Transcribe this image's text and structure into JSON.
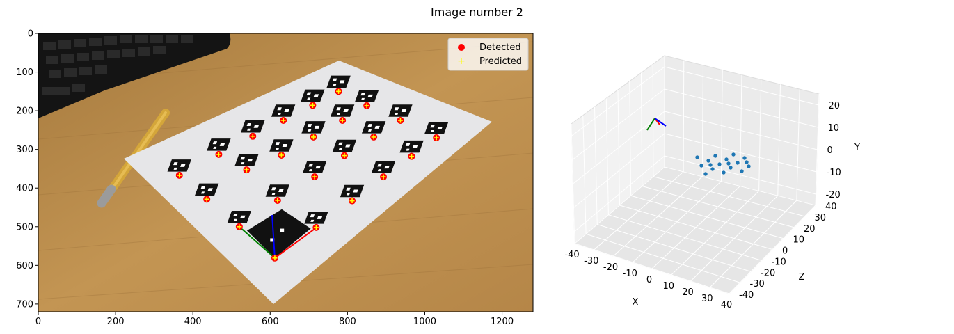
{
  "figure": {
    "suptitle": "Image number 2"
  },
  "chart_data": [
    {
      "type": "scatter",
      "panel": "image-with-detections",
      "xlim": [
        0,
        1280
      ],
      "ylim": [
        720,
        0
      ],
      "xticks": [
        0,
        200,
        400,
        600,
        800,
        1000,
        1200
      ],
      "yticks": [
        0,
        100,
        200,
        300,
        400,
        500,
        600,
        700
      ],
      "legend": {
        "placement": "top-right",
        "entries": [
          "Detected",
          "Predicted"
        ]
      },
      "colors": {
        "detected": "#ff0000",
        "predicted": "#ffff00"
      },
      "points": [
        [
          777,
          150
        ],
        [
          710,
          186
        ],
        [
          850,
          187
        ],
        [
          937,
          225
        ],
        [
          634,
          225
        ],
        [
          787,
          225
        ],
        [
          555,
          266
        ],
        [
          712,
          268
        ],
        [
          868,
          268
        ],
        [
          1030,
          270
        ],
        [
          467,
          313
        ],
        [
          629,
          315
        ],
        [
          792,
          316
        ],
        [
          966,
          318
        ],
        [
          539,
          353
        ],
        [
          715,
          371
        ],
        [
          893,
          371
        ],
        [
          365,
          367
        ],
        [
          436,
          429
        ],
        [
          619,
          432
        ],
        [
          812,
          433
        ],
        [
          520,
          500
        ],
        [
          719,
          502
        ],
        [
          612,
          581
        ]
      ],
      "axes_origin": {
        "x": 612,
        "y": 581
      },
      "axes_lines": [
        {
          "axis": "x",
          "color": "#ff0000",
          "to": [
            720,
            502
          ]
        },
        {
          "axis": "y",
          "color": "#008000",
          "to": [
            520,
            500
          ]
        },
        {
          "axis": "z",
          "color": "#0000ff",
          "to": [
            605,
            470
          ]
        }
      ],
      "scene": {
        "description_free": true,
        "paper_color": "#e6e6e8",
        "table_color": "#b88a4a",
        "keyboard_color": "#151515",
        "marker_color": "#111111"
      }
    },
    {
      "type": "scatter",
      "panel": "3d-pose",
      "xlabel": "X",
      "ylabel": "Z",
      "zlabel": "Y",
      "xlim": [
        -40,
        40
      ],
      "ylim": [
        -40,
        40
      ],
      "zlim": [
        -25,
        25
      ],
      "xticks": [
        -40,
        -30,
        -20,
        -10,
        0,
        10,
        20,
        30,
        40
      ],
      "yticks": [
        -40,
        -30,
        -20,
        -10,
        0,
        10,
        20,
        30,
        40
      ],
      "zticks": [
        -20,
        -10,
        0,
        10,
        20
      ],
      "point_color": "#1f77b4",
      "camera_axes_colors": [
        "#ff0000",
        "#008000",
        "#0000ff"
      ]
    }
  ]
}
